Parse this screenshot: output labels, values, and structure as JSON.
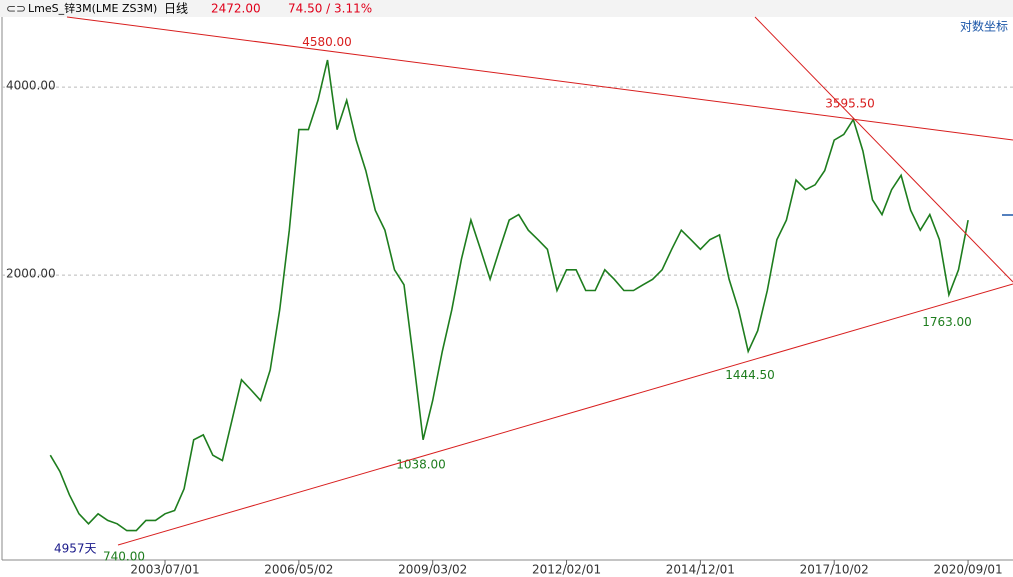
{
  "header": {
    "symbol": "LmeS_锌3M(LME ZS3M)",
    "period": "日线",
    "price": "2472.00",
    "change": "74.50 / 3.11%",
    "scale_mode": "对数坐标",
    "span": "4957天"
  },
  "chart_data": {
    "type": "line",
    "log_scale": true,
    "grid": true,
    "categories": [
      null,
      null,
      null,
      null,
      null,
      null,
      null,
      null,
      null,
      null,
      null,
      null,
      "2003/07/01",
      null,
      null,
      null,
      null,
      null,
      null,
      null,
      null,
      null,
      null,
      null,
      null,
      null,
      "2006/05/02",
      null,
      null,
      null,
      null,
      null,
      null,
      null,
      null,
      null,
      null,
      null,
      null,
      null,
      "2009/03/02",
      null,
      null,
      null,
      null,
      null,
      null,
      null,
      null,
      null,
      null,
      null,
      null,
      null,
      "2012/02/01",
      null,
      null,
      null,
      null,
      null,
      null,
      null,
      null,
      null,
      null,
      null,
      null,
      null,
      "2014/12/01",
      null,
      null,
      null,
      null,
      null,
      null,
      null,
      null,
      null,
      null,
      null,
      null,
      null,
      "2017/10/02",
      null,
      null,
      null,
      null,
      null,
      null,
      null,
      null,
      null,
      null,
      null,
      null,
      null,
      "2020/09/01"
    ],
    "series": [
      {
        "color": "#1e7d1e",
        "values": [
          1030,
          970,
          890,
          830,
          800,
          830,
          810,
          800,
          780,
          780,
          810,
          810,
          830,
          840,
          910,
          1090,
          1110,
          1030,
          1010,
          1170,
          1360,
          1310,
          1260,
          1410,
          1760,
          2360,
          3420,
          3420,
          3810,
          4420,
          3420,
          3810,
          3290,
          2940,
          2540,
          2360,
          2040,
          1930,
          1460,
          1090,
          1260,
          1510,
          1760,
          2120,
          2450,
          2200,
          1970,
          2200,
          2450,
          2500,
          2360,
          2280,
          2200,
          1890,
          2040,
          2040,
          1890,
          1890,
          2040,
          1970,
          1890,
          1890,
          1930,
          1970,
          2040,
          2200,
          2360,
          2280,
          2200,
          2280,
          2320,
          1970,
          1760,
          1510,
          1630,
          1890,
          2280,
          2450,
          2840,
          2740,
          2790,
          2940,
          3290,
          3360,
          3550,
          3160,
          2640,
          2500,
          2740,
          2890,
          2540,
          2360,
          2500,
          2280,
          1860,
          2040,
          2450
        ]
      }
    ],
    "ylim": [
      700,
      5160
    ],
    "yticks": [
      {
        "value": 2000,
        "label": "2000.00"
      },
      {
        "value": 4000,
        "label": "4000.00"
      }
    ],
    "annotations": [
      {
        "value": 4580,
        "label": "4580.00"
      },
      {
        "value": 3595.5,
        "label": "3595.50"
      },
      {
        "value": 1038,
        "label": "1038.00"
      },
      {
        "value": 1444.5,
        "label": "1444.50"
      },
      {
        "value": 1763,
        "label": "1763.00"
      },
      {
        "value": 740,
        "label": "740.00"
      }
    ]
  }
}
